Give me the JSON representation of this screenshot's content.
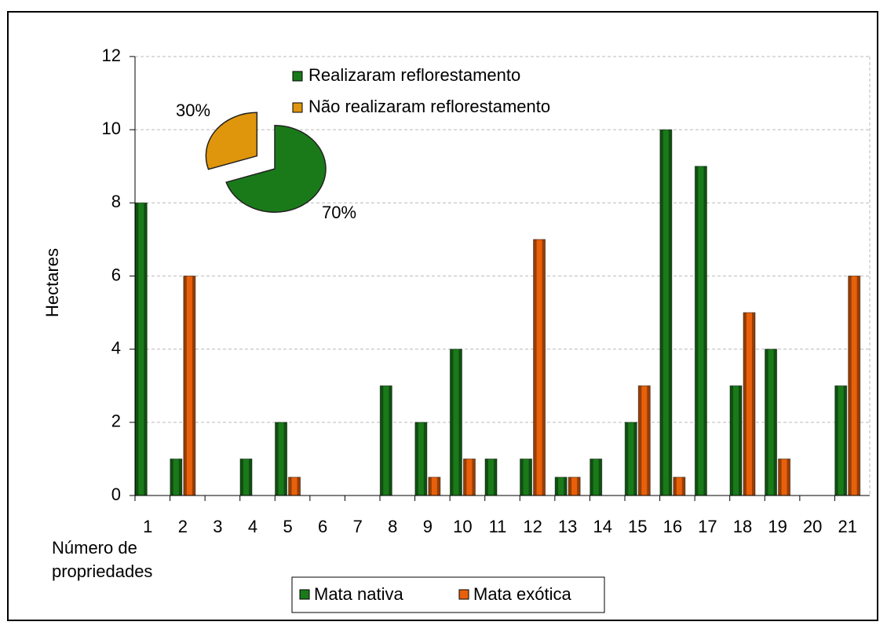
{
  "chart_data": [
    {
      "type": "bar",
      "y_label": "Hectares",
      "x_label": "Número de propriedades",
      "categories": [
        "1",
        "2",
        "3",
        "4",
        "5",
        "6",
        "7",
        "8",
        "9",
        "10",
        "11",
        "12",
        "13",
        "14",
        "15",
        "16",
        "17",
        "18",
        "19",
        "20",
        "21"
      ],
      "series": [
        {
          "name": "Mata nativa",
          "color": "#1a7a1a",
          "values": [
            8,
            1,
            0,
            1,
            2,
            0,
            0,
            3,
            2,
            4,
            1,
            1,
            0.5,
            1,
            2,
            10,
            9,
            3,
            4,
            0,
            3
          ]
        },
        {
          "name": "Mata exótica",
          "color": "#e8600a",
          "values": [
            0,
            6,
            0,
            0,
            0.5,
            0,
            0,
            0,
            0.5,
            1,
            0,
            7,
            0.5,
            0,
            3,
            0.5,
            0,
            5,
            1,
            0,
            6
          ]
        }
      ],
      "ylim": [
        0,
        12
      ],
      "yticks": [
        0,
        2,
        4,
        6,
        8,
        10,
        12
      ],
      "grid": true
    },
    {
      "type": "pie",
      "labels": [
        "Realizaram reflorestamento",
        "Não realizaram reflorestamento"
      ],
      "values": [
        70,
        30
      ],
      "value_labels": [
        "70%",
        "30%"
      ],
      "colors": [
        "#1a7a1a",
        "#e0960c"
      ]
    }
  ]
}
